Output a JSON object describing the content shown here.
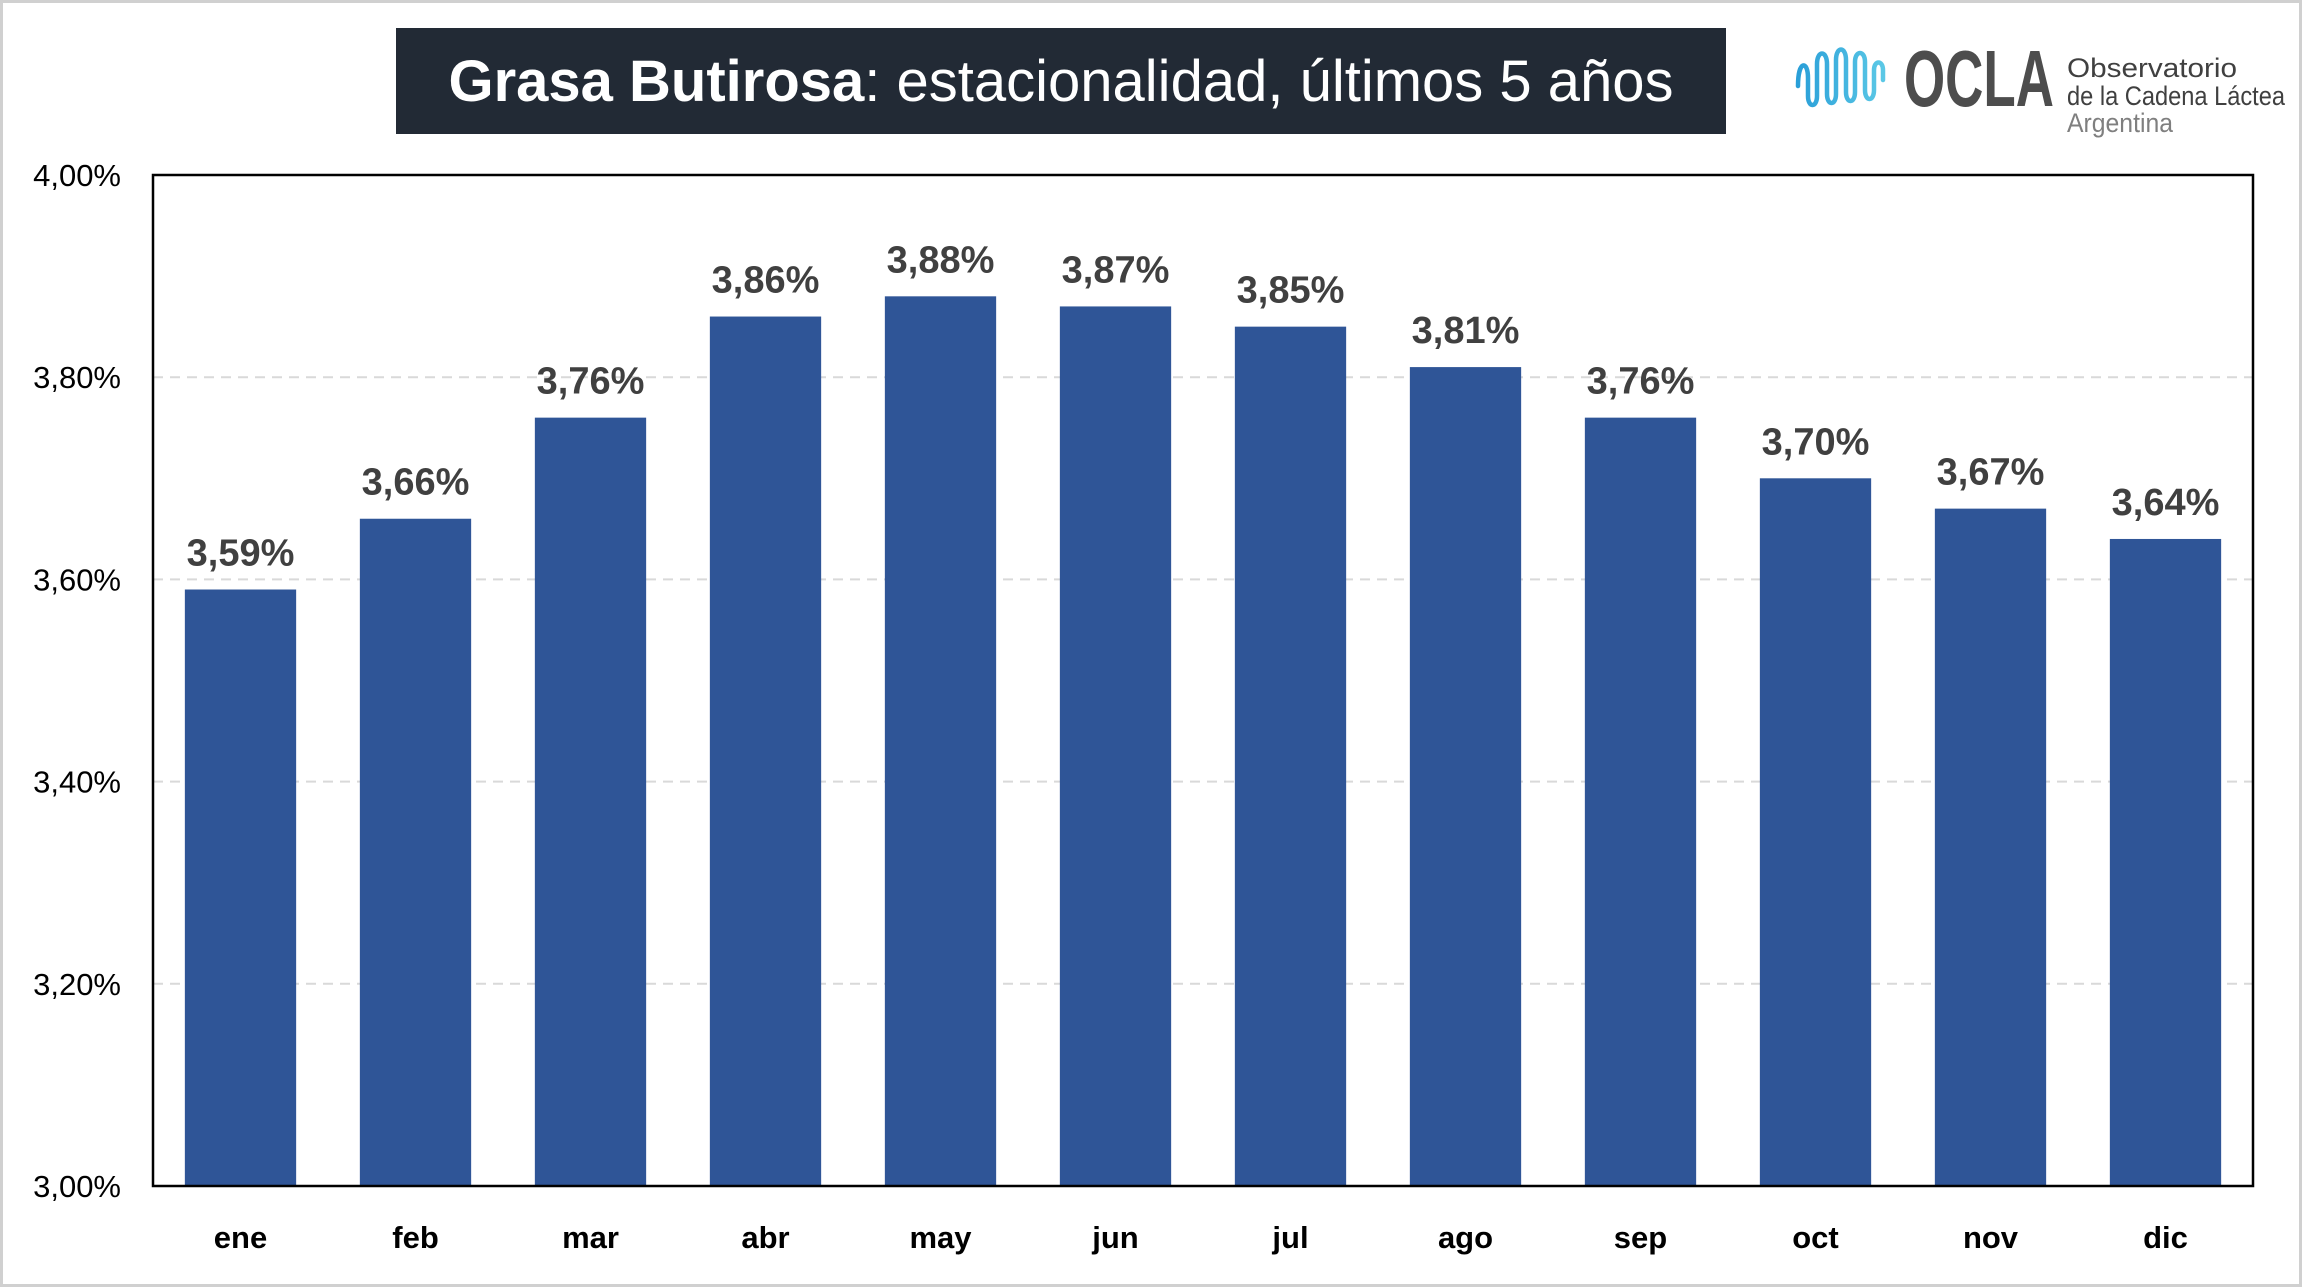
{
  "chart_data": {
    "type": "bar",
    "title": [
      "Grasa Butirosa",
      ": estacionalidad, últimos 5 años"
    ],
    "categories": [
      "ene",
      "feb",
      "mar",
      "abr",
      "may",
      "jun",
      "jul",
      "ago",
      "sep",
      "oct",
      "nov",
      "dic"
    ],
    "values": [
      3.59,
      3.66,
      3.76,
      3.86,
      3.88,
      3.87,
      3.85,
      3.81,
      3.76,
      3.7,
      3.67,
      3.64
    ],
    "data_labels": [
      "3,59%",
      "3,66%",
      "3,76%",
      "3,86%",
      "3,88%",
      "3,87%",
      "3,85%",
      "3,81%",
      "3,76%",
      "3,70%",
      "3,67%",
      "3,64%"
    ],
    "ylim": [
      3.0,
      4.0
    ],
    "ytick_values": [
      3.0,
      3.2,
      3.4,
      3.6,
      3.8,
      4.0
    ],
    "ytick_labels": [
      "3,00%",
      "3,20%",
      "3,40%",
      "3,60%",
      "3,80%",
      "4,00%"
    ],
    "grid": true,
    "colors": {
      "bar": "#2F5597",
      "data_label": "#404040",
      "grid": "#D9D9D9",
      "axis": "#000000"
    }
  },
  "header": {
    "title_bg": "#222A35",
    "title_color": "#FFFFFF"
  },
  "logo": {
    "icon": "wave-logo-icon",
    "brand": "OCLA",
    "lines": [
      "Observatorio",
      "de la Cadena Láctea",
      "Argentina"
    ],
    "colors": {
      "icon_start": "#2A9FD8",
      "icon_end": "#5BC8E6",
      "brand": "#4D4D4D",
      "text": "#404040",
      "subtext": "#7F7F7F"
    }
  }
}
